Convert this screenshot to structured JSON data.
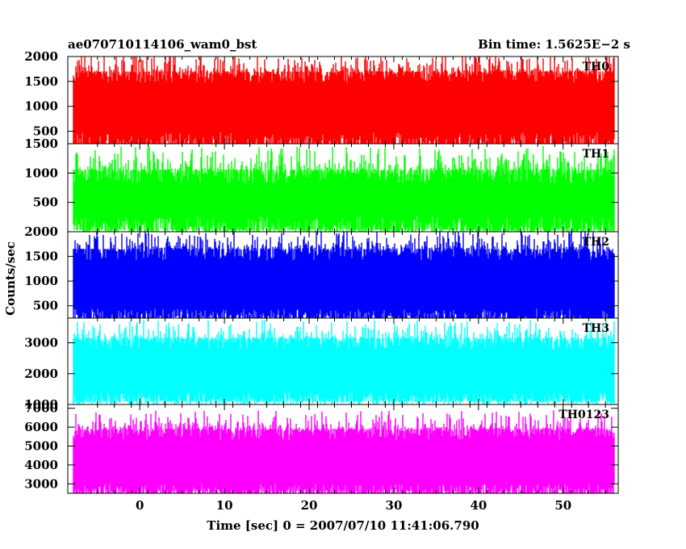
{
  "header": {
    "left_title": "ae070710114106_wam0_bst",
    "right_title": "Bin time: 1.5625E−2 s"
  },
  "axes": {
    "ylabel": "Counts/sec",
    "xlabel": "Time [sec] 0 = 2007/07/10 11:41:06.790"
  },
  "chart_data": {
    "type": "line",
    "xlim": [
      -8.5,
      56.5
    ],
    "data_xrange": [
      -7.8,
      56.0
    ],
    "xticks": [
      0,
      10,
      20,
      30,
      40,
      50
    ],
    "grid": false,
    "panels": [
      {
        "name": "TH0",
        "color": "#ff0000",
        "ylim": [
          250,
          2000
        ],
        "yticks": [
          500,
          1000,
          1500,
          2000
        ],
        "low": 200,
        "high": 1700,
        "low_spread": 280,
        "high_spread": 380
      },
      {
        "name": "TH1",
        "color": "#00ff00",
        "ylim": [
          0,
          1500
        ],
        "yticks": [
          500,
          1000,
          1500
        ],
        "low": 30,
        "high": 1060,
        "low_spread": 240,
        "high_spread": 400
      },
      {
        "name": "TH2",
        "color": "#0000ff",
        "ylim": [
          250,
          2000
        ],
        "yticks": [
          500,
          1000,
          1500,
          2000
        ],
        "low": 240,
        "high": 1650,
        "low_spread": 200,
        "high_spread": 380
      },
      {
        "name": "TH3",
        "color": "#00ffff",
        "ylim": [
          1000,
          3800
        ],
        "yticks": [
          1000,
          2000,
          3000
        ],
        "low": 1100,
        "high": 3150,
        "low_spread": 300,
        "high_spread": 600
      },
      {
        "name": "TH0123",
        "color": "#ff00ff",
        "ylim": [
          2500,
          7200
        ],
        "yticks": [
          3000,
          4000,
          5000,
          6000,
          7000
        ],
        "low": 2500,
        "high": 5900,
        "low_spread": 500,
        "high_spread": 1000
      }
    ]
  }
}
